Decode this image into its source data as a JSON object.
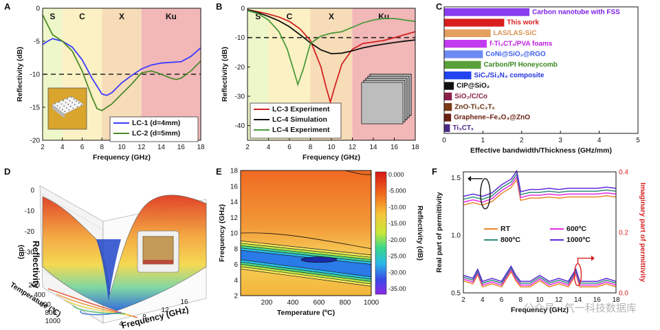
{
  "chart_data": [
    {
      "panel": "A",
      "type": "line",
      "xlabel": "Frequency (GHz)",
      "ylabel": "Reflectivity (dB)",
      "xlim": [
        2,
        18
      ],
      "ylim": [
        -20,
        0
      ],
      "xticks": [
        "2",
        "4",
        "6",
        "8",
        "10",
        "12",
        "14",
        "16",
        "18"
      ],
      "yticks": [
        "0",
        "-5",
        "-10",
        "-15",
        "-20"
      ],
      "bands": [
        {
          "label": "S",
          "from": 2,
          "to": 4,
          "color": "#eef7c9"
        },
        {
          "label": "C",
          "from": 4,
          "to": 8,
          "color": "#fbf1c4"
        },
        {
          "label": "X",
          "from": 8,
          "to": 12,
          "color": "#f7dcb8"
        },
        {
          "label": "Ku",
          "from": 12,
          "to": 18,
          "color": "#f2b8b8"
        }
      ],
      "threshold": -10,
      "series": [
        {
          "name": "LC-1   (d=4mm)",
          "color": "#3b3bff",
          "x": [
            2,
            2.5,
            3,
            4,
            5,
            6,
            7,
            8,
            8.5,
            9,
            10,
            11,
            12,
            13,
            14,
            15,
            16,
            17,
            18
          ],
          "y": [
            -5.5,
            -5.0,
            -4.6,
            -5.0,
            -5.9,
            -7.8,
            -10.6,
            -13.0,
            -13.2,
            -12.8,
            -11.3,
            -10.2,
            -9.2,
            -8.6,
            -8.3,
            -8.2,
            -8.1,
            -7.3,
            -6.0
          ]
        },
        {
          "name": "LC-2   (d=5mm)",
          "color": "#4a8a2a",
          "x": [
            2,
            2.5,
            3,
            4,
            5,
            6,
            7,
            7.5,
            8,
            9,
            10,
            11,
            12,
            13,
            14,
            15,
            15.5,
            16,
            17,
            18
          ],
          "y": [
            -1.0,
            -2.5,
            -4.0,
            -5.0,
            -6.5,
            -9.5,
            -13.5,
            -15.2,
            -15.5,
            -14.5,
            -13.0,
            -11.5,
            -9.8,
            -9.5,
            -10.0,
            -10.6,
            -10.8,
            -10.6,
            -9.5,
            -8.0
          ]
        }
      ],
      "inset": "photo"
    },
    {
      "panel": "B",
      "type": "line",
      "xlabel": "Frequency (GHz)",
      "ylabel": "Reflectivity (dB)",
      "xlim": [
        2,
        18
      ],
      "ylim": [
        -45,
        0
      ],
      "xticks": [
        "2",
        "4",
        "6",
        "8",
        "10",
        "12",
        "14",
        "16",
        "18"
      ],
      "yticks": [
        "0",
        "-10",
        "-20",
        "-30",
        "-40"
      ],
      "bands": [
        {
          "label": "S",
          "from": 2,
          "to": 4,
          "color": "#eef7c9"
        },
        {
          "label": "C",
          "from": 4,
          "to": 8,
          "color": "#fbf1c4"
        },
        {
          "label": "X",
          "from": 8,
          "to": 12,
          "color": "#f7dcb8"
        },
        {
          "label": "Ku",
          "from": 12,
          "to": 18,
          "color": "#f2b8b8"
        }
      ],
      "threshold": -10,
      "series": [
        {
          "name": "LC-3   Experiment",
          "color": "#d22020",
          "x": [
            2,
            3,
            4,
            5,
            6,
            7,
            8,
            9,
            9.5,
            9.9,
            10.3,
            11,
            12,
            13,
            14,
            15,
            16,
            17,
            18
          ],
          "y": [
            -0.5,
            -1.2,
            -2.0,
            -3.0,
            -4.5,
            -7.0,
            -11.0,
            -20.0,
            -27.0,
            -32.0,
            -27.0,
            -19.0,
            -14.0,
            -12.0,
            -11.5,
            -11.0,
            -10.0,
            -9.0,
            -8.0
          ]
        },
        {
          "name": "LC-4   Simulation",
          "color": "#111111",
          "x": [
            2,
            3,
            4,
            5,
            6,
            7,
            8,
            9,
            10,
            11,
            12,
            13,
            14,
            15,
            16,
            17,
            18
          ],
          "y": [
            -0.5,
            -1.5,
            -2.8,
            -4.3,
            -6.3,
            -9.0,
            -11.8,
            -14.2,
            -15.5,
            -15.3,
            -14.5,
            -13.5,
            -12.8,
            -12.2,
            -11.7,
            -11.2,
            -10.8
          ]
        },
        {
          "name": "LC-4   Experiment",
          "color": "#4a9a3a",
          "x": [
            2,
            3,
            4,
            5,
            5.8,
            6.3,
            6.8,
            7.3,
            8,
            9,
            10,
            11,
            12,
            13,
            14,
            15,
            16,
            17,
            18
          ],
          "y": [
            -0.8,
            -1.8,
            -4.0,
            -8.0,
            -14.0,
            -20.0,
            -26.0,
            -21.0,
            -12.0,
            -9.5,
            -8.5,
            -8.0,
            -6.5,
            -5.0,
            -4.0,
            -3.5,
            -3.5,
            -4.0,
            -4.5
          ]
        }
      ],
      "inset": "photo"
    },
    {
      "panel": "C",
      "type": "bar",
      "orientation": "horizontal",
      "xlabel": "Effective bandwidth/Thickness (GHz/mm)",
      "xlim": [
        0,
        5
      ],
      "xticks": [
        "0",
        "1",
        "2",
        "3",
        "4",
        "5"
      ],
      "categories": [
        "Carbon nanotube with FSS",
        "This work",
        "LAS/LAS-SiC",
        "f-Ti₃CTₓ/PVA foams",
        "CoNi@SiO₂@RGO",
        "Carbon/PI Honeycomb",
        "SiCᵥ/Si₃N₄ composite",
        "CIP@SiO₂",
        "SiO₂/C/Co",
        "ZnO-Ti₃C₂Tₓ",
        "Graphene–Fe₃O₄@ZnO",
        "Ti₃CTₓ"
      ],
      "values": [
        2.2,
        1.55,
        1.2,
        1.1,
        1.0,
        0.95,
        0.7,
        0.25,
        0.2,
        0.2,
        0.18,
        0.15
      ],
      "colors": [
        "#8a3cf0",
        "#d81e1e",
        "#e3a060",
        "#c23bf0",
        "#6d8af2",
        "#5aa03a",
        "#2244f0",
        "#111111",
        "#8a1f4a",
        "#7a3a18",
        "#6a2010",
        "#4b2a86"
      ],
      "label_colors": [
        "#7c1fe8",
        "#d81e1e",
        "#d89050",
        "#c020e0",
        "#3a5ee8",
        "#3a8a20",
        "#2233e0",
        "#111111",
        "#8a1f4a",
        "#6a3010",
        "#6a2010",
        "#4b2a86"
      ]
    },
    {
      "panel": "D",
      "type": "heatmap",
      "style": "3d-surface",
      "zlabel": "Reflectivity",
      "zunit": "(dB)",
      "ylabel": "Temperature (℃)",
      "xlabel": "Frequency (GHz)",
      "zticks": [
        "0",
        "-10",
        "-20",
        "-30"
      ],
      "yticks": [
        "200",
        "400",
        "600",
        "800",
        "1000"
      ],
      "xticks": [
        "4",
        "8",
        "12",
        "16"
      ],
      "inset": "photo"
    },
    {
      "panel": "E",
      "type": "heatmap",
      "style": "contour",
      "xlabel": "Temperature (ºC)",
      "ylabel": "Frequency (GHz)",
      "colorbar_label": "Reflectivity (dB)",
      "xlim": [
        0,
        1000
      ],
      "ylim": [
        2,
        18
      ],
      "xticks": [
        "200",
        "400",
        "600",
        "800",
        "1000"
      ],
      "yticks": [
        "2",
        "4",
        "6",
        "8",
        "10",
        "12",
        "14",
        "16",
        "18"
      ],
      "colorbar_ticks": [
        "0.000",
        "-5.000",
        "-10.00",
        "-15.00",
        "-20.00",
        "-25.00",
        "-30.00",
        "-35.00"
      ]
    },
    {
      "panel": "F",
      "type": "line",
      "xlabel": "Frequency (GHz)",
      "ylabel_left": "Real part of permittivity",
      "ylabel_right": "Imaginary part of permittivity",
      "xlim": [
        2,
        18
      ],
      "ylim_left": [
        0.5,
        1.5
      ],
      "ylim_right": [
        0,
        0.4
      ],
      "xticks": [
        "2",
        "4",
        "6",
        "8",
        "10",
        "12",
        "14",
        "16",
        "18"
      ],
      "yticks_left": [
        "0.5",
        "1.0",
        "1.5"
      ],
      "yticks_right": [
        "0.0",
        "0.2",
        "0.4"
      ],
      "series": [
        {
          "name": "RT",
          "color": "#e8862a"
        },
        {
          "name": "600ºC",
          "color": "#e22ae2"
        },
        {
          "name": "800ºC",
          "color": "#2e8a7a"
        },
        {
          "name": "1000ºC",
          "color": "#5a2ad8"
        }
      ]
    }
  ],
  "watermark": "公众号 · 气一科技数据库"
}
